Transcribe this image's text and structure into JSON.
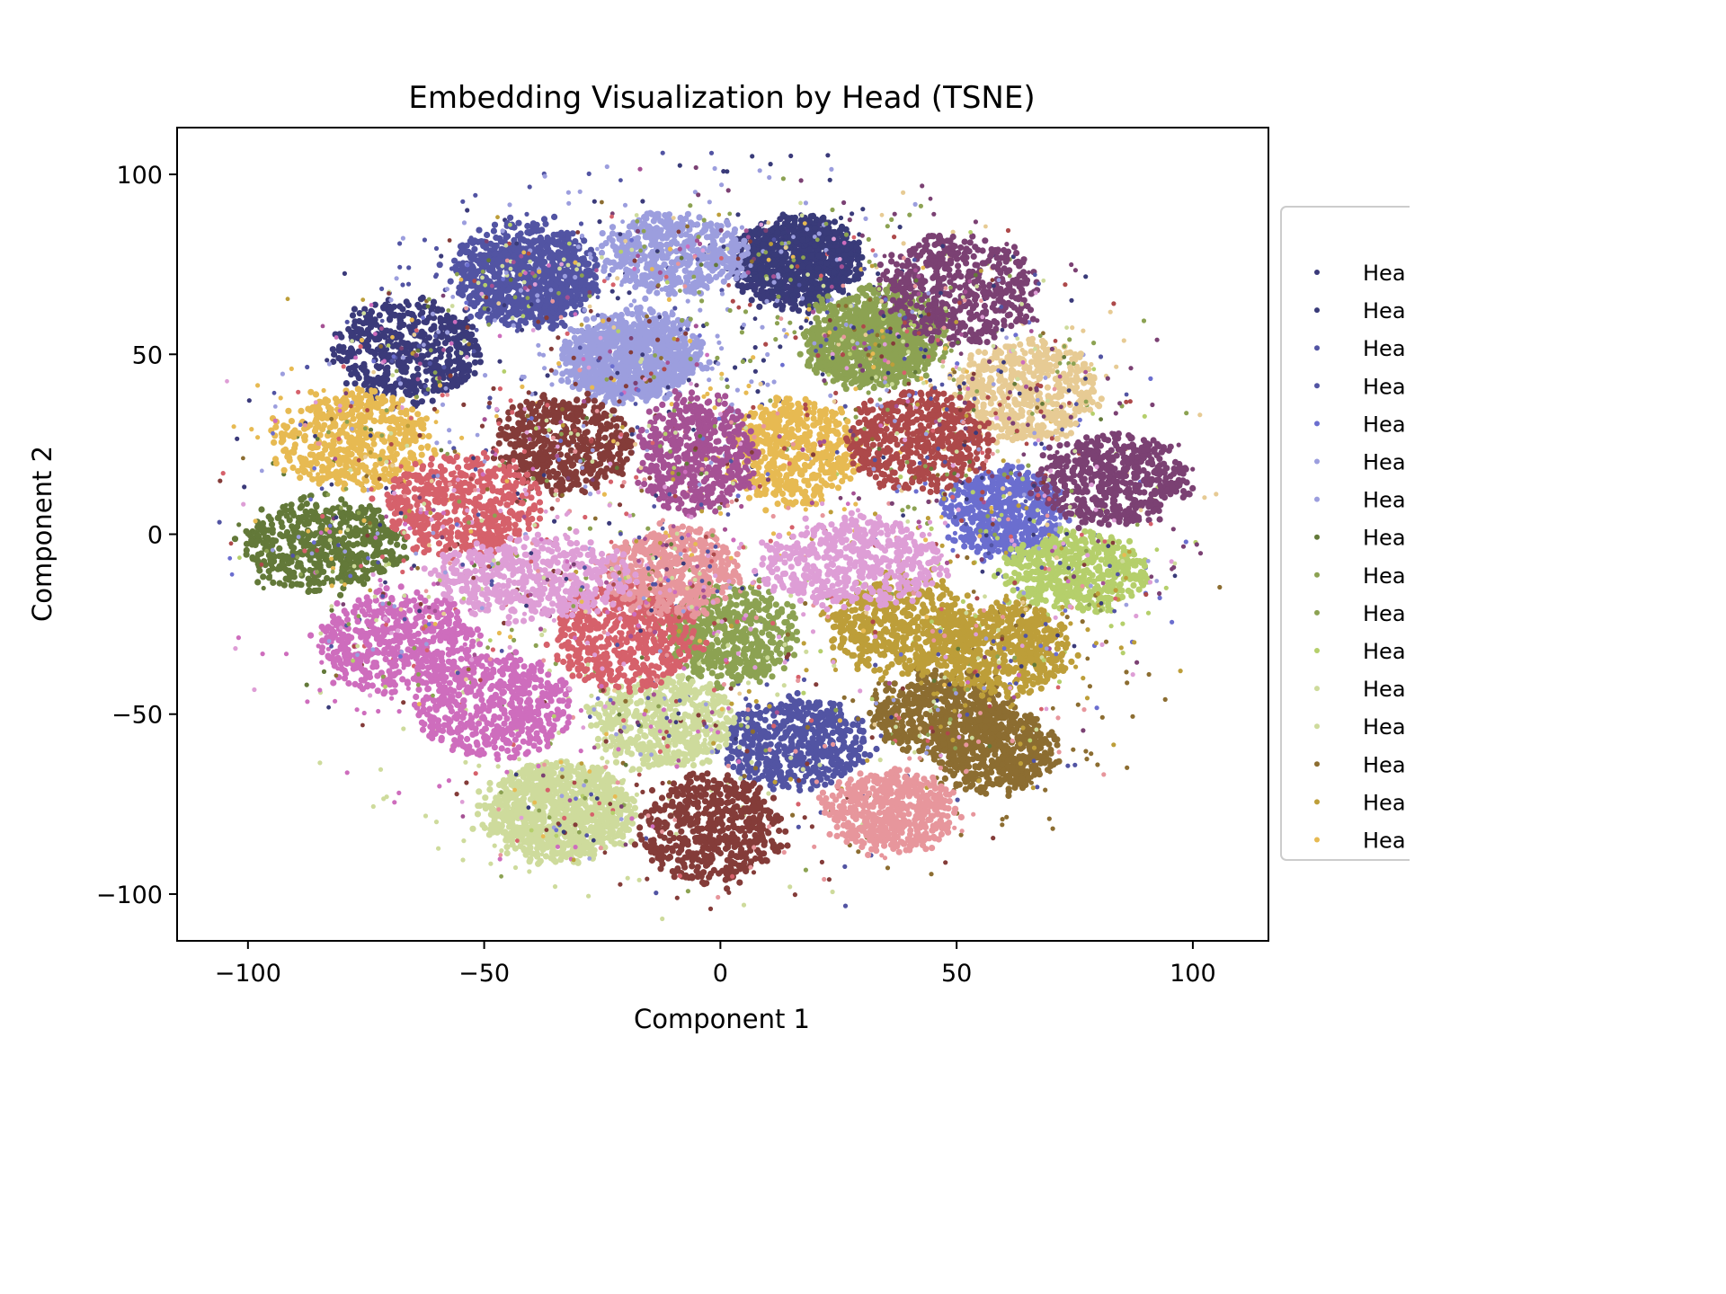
{
  "chart_data": {
    "type": "scatter",
    "title": "Embedding Visualization by Head (TSNE)",
    "xlabel": "Component 1",
    "ylabel": "Component 2",
    "xlim": [
      -115,
      116
    ],
    "ylim": [
      -113,
      113
    ],
    "xticks": [
      -100,
      -50,
      0,
      50,
      100
    ],
    "yticks": [
      -100,
      -50,
      0,
      50,
      100
    ],
    "xtick_labels": [
      "−100",
      "−50",
      "0",
      "50",
      "100"
    ],
    "ytick_labels": [
      "−100",
      "−50",
      "0",
      "50",
      "100"
    ],
    "grid": false,
    "legend_position": "right",
    "series": [
      {
        "name": "Hea",
        "color": "#3b3a7a",
        "clusters": [
          {
            "x": -66,
            "y": 51,
            "sx": 11,
            "sy": 10
          },
          {
            "x": 16,
            "y": 75,
            "sx": 10,
            "sy": 9
          }
        ]
      },
      {
        "name": "Hea",
        "color": "#393b79",
        "clusters": [
          {
            "x": 17,
            "y": 77,
            "sx": 9,
            "sy": 8
          }
        ]
      },
      {
        "name": "Hea",
        "color": "#5254a3",
        "clusters": [
          {
            "x": -42,
            "y": 73,
            "sx": 11,
            "sy": 10
          },
          {
            "x": 16,
            "y": -58,
            "sx": 11,
            "sy": 9
          }
        ]
      },
      {
        "name": "Hea",
        "color": "#5254a3",
        "clusters": [
          {
            "x": -40,
            "y": 70,
            "sx": 10,
            "sy": 9
          }
        ]
      },
      {
        "name": "Hea",
        "color": "#6b6ecf",
        "clusters": [
          {
            "x": 60,
            "y": 6,
            "sx": 9,
            "sy": 9
          }
        ]
      },
      {
        "name": "Hea",
        "color": "#9c9ede",
        "clusters": [
          {
            "x": -10,
            "y": 78,
            "sx": 11,
            "sy": 8
          },
          {
            "x": -18,
            "y": 50,
            "sx": 11,
            "sy": 9
          }
        ]
      },
      {
        "name": "Hea",
        "color": "#9c9ede",
        "clusters": [
          {
            "x": -20,
            "y": 48,
            "sx": 10,
            "sy": 8
          }
        ]
      },
      {
        "name": "Hea",
        "color": "#637939",
        "clusters": [
          {
            "x": -84,
            "y": -3,
            "sx": 12,
            "sy": 9
          }
        ]
      },
      {
        "name": "Hea",
        "color": "#8ca252",
        "clusters": [
          {
            "x": 33,
            "y": 55,
            "sx": 11,
            "sy": 10
          },
          {
            "x": 2,
            "y": -28,
            "sx": 10,
            "sy": 10
          }
        ]
      },
      {
        "name": "Hea",
        "color": "#8ca252",
        "clusters": [
          {
            "x": 31,
            "y": 52,
            "sx": 9,
            "sy": 8
          }
        ]
      },
      {
        "name": "Hea",
        "color": "#b5cf6b",
        "clusters": [
          {
            "x": 75,
            "y": -10,
            "sx": 11,
            "sy": 8
          }
        ]
      },
      {
        "name": "Hea",
        "color": "#cedb9c",
        "clusters": [
          {
            "x": -12,
            "y": -52,
            "sx": 11,
            "sy": 9
          },
          {
            "x": -35,
            "y": -78,
            "sx": 12,
            "sy": 10
          }
        ]
      },
      {
        "name": "Hea",
        "color": "#cedb9c",
        "clusters": [
          {
            "x": -33,
            "y": -76,
            "sx": 10,
            "sy": 9
          }
        ]
      },
      {
        "name": "Hea",
        "color": "#8c6d31",
        "clusters": [
          {
            "x": 47,
            "y": -50,
            "sx": 11,
            "sy": 8
          },
          {
            "x": 58,
            "y": -60,
            "sx": 9,
            "sy": 8
          }
        ]
      },
      {
        "name": "Hea",
        "color": "#bd9e39",
        "clusters": [
          {
            "x": 60,
            "y": -32,
            "sx": 10,
            "sy": 9
          },
          {
            "x": 38,
            "y": -25,
            "sx": 11,
            "sy": 10
          }
        ]
      },
      {
        "name": "Hea",
        "color": "#e7ba52",
        "clusters": [
          {
            "x": -78,
            "y": 26,
            "sx": 12,
            "sy": 10
          },
          {
            "x": 15,
            "y": 23,
            "sx": 10,
            "sy": 11
          }
        ]
      },
      {
        "name": "Hea",
        "color": "#e7cb94",
        "clusters": [
          {
            "x": 65,
            "y": 40,
            "sx": 11,
            "sy": 10
          }
        ]
      },
      {
        "name": "Hea",
        "color": "#843c39",
        "clusters": [
          {
            "x": -33,
            "y": 25,
            "sx": 10,
            "sy": 10
          },
          {
            "x": -2,
            "y": -82,
            "sx": 11,
            "sy": 11
          }
        ]
      },
      {
        "name": "Hea",
        "color": "#ad494a",
        "clusters": [
          {
            "x": 42,
            "y": 26,
            "sx": 11,
            "sy": 10
          }
        ]
      },
      {
        "name": "Hea",
        "color": "#d6616b",
        "clusters": [
          {
            "x": -55,
            "y": 8,
            "sx": 12,
            "sy": 10
          },
          {
            "x": -20,
            "y": -28,
            "sx": 11,
            "sy": 11
          }
        ]
      },
      {
        "name": "Hea",
        "color": "#e7969c",
        "clusters": [
          {
            "x": -10,
            "y": -10,
            "sx": 10,
            "sy": 9
          },
          {
            "x": 36,
            "y": -77,
            "sx": 10,
            "sy": 8
          }
        ]
      },
      {
        "name": "Hea",
        "color": "#7b4173",
        "clusters": [
          {
            "x": 50,
            "y": 68,
            "sx": 12,
            "sy": 11
          },
          {
            "x": 83,
            "y": 15,
            "sx": 12,
            "sy": 9
          }
        ]
      },
      {
        "name": "Hea",
        "color": "#a55194",
        "clusters": [
          {
            "x": -5,
            "y": 22,
            "sx": 9,
            "sy": 12
          }
        ]
      },
      {
        "name": "Hea",
        "color": "#ce6dbd",
        "clusters": [
          {
            "x": -68,
            "y": -30,
            "sx": 12,
            "sy": 10
          },
          {
            "x": -48,
            "y": -48,
            "sx": 12,
            "sy": 10
          }
        ]
      },
      {
        "name": "Hea",
        "color": "#de9ed6",
        "clusters": [
          {
            "x": -40,
            "y": -12,
            "sx": 16,
            "sy": 8
          },
          {
            "x": 28,
            "y": -8,
            "sx": 14,
            "sy": 9
          }
        ]
      }
    ]
  }
}
